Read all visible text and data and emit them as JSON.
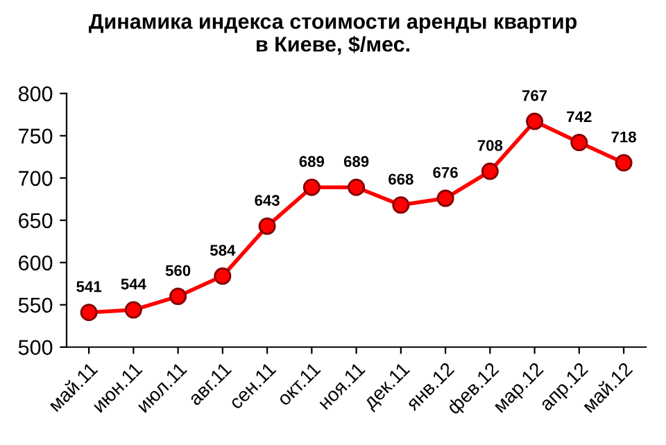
{
  "chart_data": {
    "type": "line",
    "title": "Динамика индекса стоимости аренды квартир\nв Киеве, $/мес.",
    "categories": [
      "май.11",
      "июн.11",
      "июл.11",
      "авг.11",
      "сен.11",
      "окт.11",
      "ноя.11",
      "дек.11",
      "янв.12",
      "фев.12",
      "мар.12",
      "апр.12",
      "май.12"
    ],
    "series": [
      {
        "color": "#ff0000",
        "values": [
          541,
          544,
          560,
          584,
          643,
          689,
          689,
          668,
          676,
          708,
          767,
          742,
          718
        ]
      }
    ],
    "ylim": [
      500,
      800
    ],
    "yticks": [
      500,
      550,
      600,
      650,
      700,
      750,
      800
    ],
    "grid": false,
    "legend": false,
    "marker": "circle",
    "line_style": "solid",
    "data_labels": true
  }
}
